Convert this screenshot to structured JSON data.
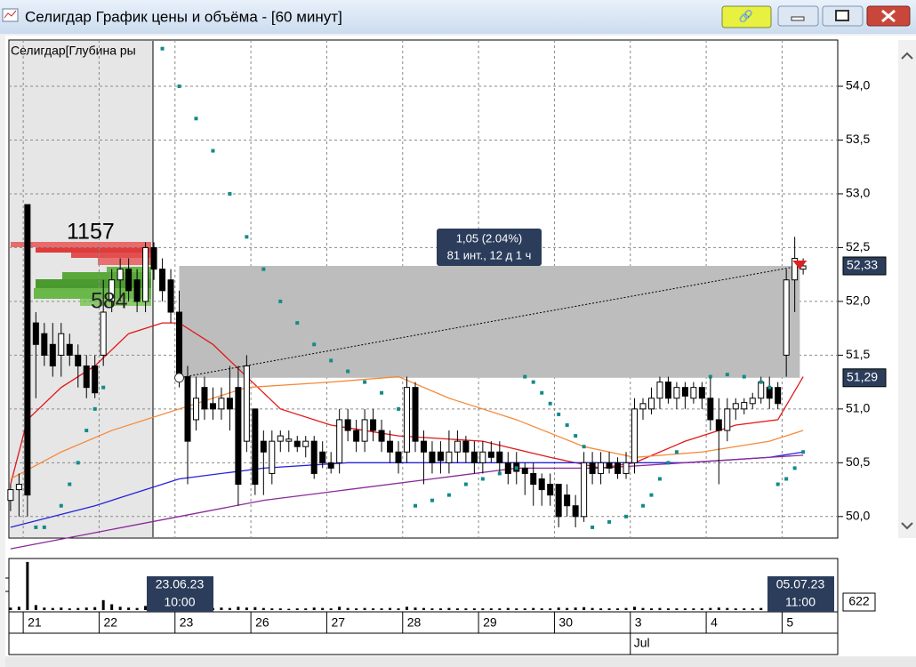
{
  "window": {
    "title": "Селигдар График цены и объёма - [60 минут]"
  },
  "chart_data": {
    "type": "candlestick",
    "profile": {
      "title": "Селигдар[Глубина ры",
      "ask_label": "1157",
      "bid_label": "584"
    },
    "xlim": [
      -0.2,
      98.1
    ],
    "xticks": [
      {
        "value": 2,
        "label": "21"
      },
      {
        "value": 11,
        "label": "22"
      },
      {
        "value": 20,
        "label": "23"
      },
      {
        "value": 29,
        "label": "26"
      },
      {
        "value": 38,
        "label": "27"
      },
      {
        "value": 47,
        "label": "28"
      },
      {
        "value": 56,
        "label": "29"
      },
      {
        "value": 65,
        "label": "30"
      },
      {
        "value": 74,
        "label": "3"
      },
      {
        "value": 83,
        "label": "4"
      },
      {
        "value": 92,
        "label": "5"
      }
    ],
    "month_label": {
      "value": 74,
      "label": "Jul"
    },
    "ylim": [
      49.8,
      54.43
    ],
    "yticks": [
      {
        "value": 50,
        "label": "50,0"
      },
      {
        "value": 50.5,
        "label": "50,5"
      },
      {
        "value": 51,
        "label": "51,0"
      },
      {
        "value": 51.5,
        "label": "51,5"
      },
      {
        "value": 52,
        "label": "52,0"
      },
      {
        "value": 52.5,
        "label": "52,5"
      },
      {
        "value": 53,
        "label": "53,0"
      },
      {
        "value": 53.5,
        "label": "53,5"
      },
      {
        "value": 54,
        "label": "54,0"
      }
    ],
    "grid": true,
    "ohlc": [
      [
        50.15,
        50.3,
        50.05,
        50.25
      ],
      [
        50.25,
        50.4,
        50.0,
        50.3
      ],
      [
        52.9,
        52.9,
        50.0,
        50.2
      ],
      [
        51.8,
        51.9,
        51.1,
        51.6
      ],
      [
        51.7,
        51.8,
        51.4,
        51.5
      ],
      [
        51.6,
        51.8,
        51.3,
        51.4
      ],
      [
        51.5,
        51.8,
        51.3,
        51.7
      ],
      [
        51.6,
        51.7,
        51.4,
        51.5
      ],
      [
        51.5,
        51.6,
        51.2,
        51.4
      ],
      [
        51.4,
        51.5,
        51.1,
        51.2
      ],
      [
        51.4,
        51.5,
        51.1,
        51.15
      ],
      [
        51.5,
        52.2,
        51.4,
        51.9
      ],
      [
        52.0,
        52.3,
        51.9,
        52.2
      ],
      [
        52.2,
        52.4,
        52.0,
        52.3
      ],
      [
        52.3,
        52.4,
        52.0,
        52.1
      ],
      [
        52.2,
        52.3,
        51.9,
        52.0
      ],
      [
        52.0,
        52.55,
        51.9,
        52.5
      ],
      [
        52.5,
        52.55,
        52.2,
        52.3
      ],
      [
        52.3,
        52.4,
        52.0,
        52.1
      ],
      [
        52.2,
        52.3,
        51.8,
        51.9
      ],
      [
        51.9,
        52.1,
        51.2,
        51.3
      ],
      [
        51.3,
        51.4,
        50.3,
        50.7
      ],
      [
        50.9,
        51.3,
        50.8,
        51.1
      ],
      [
        51.2,
        51.3,
        50.9,
        51.0
      ],
      [
        51.05,
        51.2,
        50.9,
        51.0
      ],
      [
        51.0,
        51.2,
        50.9,
        51.1
      ],
      [
        51.1,
        51.4,
        50.8,
        51.0
      ],
      [
        51.2,
        51.4,
        50.1,
        50.3
      ],
      [
        50.7,
        51.5,
        50.6,
        51.4
      ],
      [
        51.0,
        51.0,
        50.2,
        50.3
      ],
      [
        50.7,
        50.8,
        50.2,
        50.6
      ],
      [
        50.4,
        50.8,
        50.3,
        50.7
      ],
      [
        50.7,
        50.8,
        50.6,
        50.75
      ],
      [
        50.7,
        50.8,
        50.6,
        50.72
      ],
      [
        50.7,
        50.75,
        50.6,
        50.65
      ],
      [
        50.65,
        50.75,
        50.55,
        50.7
      ],
      [
        50.7,
        50.75,
        50.35,
        50.4
      ],
      [
        50.6,
        50.7,
        50.45,
        50.5
      ],
      [
        50.5,
        50.6,
        50.4,
        50.45
      ],
      [
        50.5,
        51.0,
        50.4,
        50.9
      ],
      [
        50.9,
        51.0,
        50.7,
        50.8
      ],
      [
        50.8,
        50.9,
        50.6,
        50.7
      ],
      [
        50.7,
        51.0,
        50.6,
        50.9
      ],
      [
        50.9,
        51.0,
        50.7,
        50.8
      ],
      [
        50.8,
        50.9,
        50.6,
        50.7
      ],
      [
        50.7,
        50.8,
        50.5,
        50.6
      ],
      [
        50.6,
        50.7,
        50.4,
        50.5
      ],
      [
        50.6,
        51.3,
        50.5,
        51.2
      ],
      [
        51.2,
        51.25,
        50.6,
        50.7
      ],
      [
        50.7,
        50.8,
        50.3,
        50.6
      ],
      [
        50.6,
        50.7,
        50.4,
        50.5
      ],
      [
        50.6,
        50.7,
        50.4,
        50.52
      ],
      [
        50.5,
        50.8,
        50.4,
        50.6
      ],
      [
        50.6,
        50.8,
        50.5,
        50.7
      ],
      [
        50.7,
        50.75,
        50.5,
        50.6
      ],
      [
        50.6,
        50.7,
        50.4,
        50.5
      ],
      [
        50.5,
        50.7,
        50.4,
        50.6
      ],
      [
        50.6,
        50.7,
        50.5,
        50.55
      ],
      [
        50.6,
        50.7,
        50.4,
        50.5
      ],
      [
        50.5,
        50.6,
        50.3,
        50.4
      ],
      [
        50.5,
        50.6,
        50.3,
        50.42
      ],
      [
        50.45,
        50.5,
        50.2,
        50.4
      ],
      [
        50.4,
        50.5,
        50.1,
        50.3
      ],
      [
        50.35,
        50.4,
        50.1,
        50.25
      ],
      [
        50.3,
        50.4,
        50.1,
        50.2
      ],
      [
        50.3,
        50.3,
        49.9,
        50.0
      ],
      [
        50.2,
        50.3,
        50.0,
        50.1
      ],
      [
        50.1,
        50.2,
        49.9,
        50.0
      ],
      [
        50.0,
        50.6,
        49.95,
        50.5
      ],
      [
        50.5,
        50.6,
        50.3,
        50.4
      ],
      [
        50.4,
        50.6,
        50.3,
        50.5
      ],
      [
        50.5,
        50.6,
        50.4,
        50.45
      ],
      [
        50.5,
        50.55,
        50.35,
        50.4
      ],
      [
        50.4,
        50.6,
        50.35,
        50.5
      ],
      [
        50.5,
        51.1,
        50.4,
        51.0
      ],
      [
        51.0,
        51.1,
        50.9,
        51.05
      ],
      [
        51.0,
        51.2,
        50.95,
        51.1
      ],
      [
        51.1,
        51.3,
        51.0,
        51.25
      ],
      [
        51.25,
        51.3,
        51.05,
        51.1
      ],
      [
        51.1,
        51.25,
        51.0,
        51.2
      ],
      [
        51.2,
        51.25,
        51.0,
        51.12
      ],
      [
        51.1,
        51.25,
        51.05,
        51.2
      ],
      [
        51.2,
        51.25,
        51.0,
        51.1
      ],
      [
        51.1,
        51.3,
        50.8,
        50.9
      ],
      [
        50.9,
        51.1,
        50.3,
        50.8
      ],
      [
        50.8,
        51.1,
        50.7,
        51.0
      ],
      [
        51.0,
        51.1,
        50.9,
        51.05
      ],
      [
        51.0,
        51.1,
        50.95,
        51.06
      ],
      [
        51.05,
        51.15,
        51.0,
        51.1
      ],
      [
        51.1,
        51.3,
        51.05,
        51.25
      ],
      [
        51.2,
        51.3,
        51.0,
        51.1
      ],
      [
        51.2,
        51.25,
        51.0,
        51.05
      ],
      [
        51.5,
        52.3,
        51.3,
        52.2
      ],
      [
        52.2,
        52.6,
        51.9,
        52.4
      ],
      [
        52.3,
        52.4,
        52.25,
        52.33
      ]
    ],
    "lines": [
      {
        "color": "#e01818",
        "x": [
          0,
          2,
          6,
          10,
          14,
          18,
          20,
          24,
          28,
          32,
          38,
          46,
          56,
          64,
          70,
          74,
          80,
          86,
          91,
          94
        ],
        "values": [
          50.3,
          50.9,
          51.2,
          51.4,
          51.7,
          51.8,
          51.8,
          51.6,
          51.3,
          51.0,
          50.85,
          50.75,
          50.7,
          50.55,
          50.45,
          50.5,
          50.7,
          50.85,
          50.9,
          51.3
        ]
      },
      {
        "color": "#f58a3c",
        "x": [
          0,
          6,
          12,
          20,
          28,
          38,
          46,
          52,
          60,
          68,
          74,
          82,
          90,
          94
        ],
        "values": [
          50.35,
          50.6,
          50.8,
          51.0,
          51.2,
          51.25,
          51.3,
          51.1,
          50.9,
          50.65,
          50.55,
          50.6,
          50.7,
          50.8
        ]
      },
      {
        "color": "#2424d8",
        "x": [
          0,
          10,
          20,
          30,
          40,
          50,
          60,
          70,
          80,
          90,
          94
        ],
        "values": [
          49.9,
          50.1,
          50.35,
          50.45,
          50.5,
          50.5,
          50.5,
          50.5,
          50.5,
          50.55,
          50.6
        ]
      },
      {
        "color": "#8a2a9a",
        "x": [
          0,
          10,
          20,
          30,
          40,
          50,
          60,
          70,
          80,
          90,
          94
        ],
        "values": [
          49.7,
          49.85,
          50.0,
          50.15,
          50.25,
          50.35,
          50.45,
          50.45,
          50.5,
          50.55,
          50.57
        ]
      }
    ],
    "sar": {
      "color": "#138a8a",
      "x": [
        3,
        4,
        6,
        7,
        8,
        9,
        10,
        11,
        18,
        20,
        22,
        24,
        26,
        28,
        30,
        32,
        34,
        36,
        38,
        40,
        42,
        44,
        46,
        48,
        50,
        52,
        54,
        56,
        58,
        60,
        61,
        62,
        63,
        64,
        65,
        66,
        67,
        68,
        69,
        71,
        73,
        75,
        76,
        77,
        78,
        79,
        83,
        85,
        87,
        89,
        90,
        91,
        92,
        93,
        94
      ],
      "values": [
        49.9,
        49.9,
        50.1,
        50.3,
        50.5,
        50.8,
        51.0,
        51.2,
        54.35,
        54.0,
        53.7,
        53.4,
        53.0,
        52.6,
        52.3,
        52.0,
        51.8,
        51.6,
        51.45,
        51.35,
        51.25,
        51.15,
        51.0,
        50.1,
        50.15,
        50.2,
        50.3,
        50.35,
        50.4,
        50.45,
        51.3,
        51.25,
        51.15,
        51.05,
        50.95,
        50.85,
        50.75,
        50.65,
        49.9,
        49.95,
        50.0,
        50.1,
        50.2,
        50.35,
        50.5,
        50.6,
        51.3,
        51.32,
        51.3,
        51.25,
        51.2,
        50.3,
        50.35,
        50.45,
        50.6
      ]
    },
    "price_tags": [
      {
        "value": 52.33,
        "label": "52,33"
      },
      {
        "value": 51.29,
        "label": "51,29"
      }
    ],
    "measure": {
      "line1": "1,05 (2.04%)",
      "line2": "81 инт., 12 д 1 ч"
    },
    "cursor_labels": [
      {
        "date": "23.06.23",
        "time": "10:00"
      },
      {
        "date": "05.07.23",
        "time": "11:00"
      }
    ],
    "volume": {
      "ylim": [
        0,
        6000
      ],
      "values": [
        300,
        400,
        5800,
        600,
        300,
        250,
        300,
        200,
        250,
        300,
        350,
        1200,
        700,
        400,
        300,
        250,
        500,
        400,
        300,
        350,
        450,
        300,
        250,
        200,
        250,
        300,
        250,
        400,
        300,
        350,
        250,
        200,
        200,
        150,
        200,
        200,
        300,
        250,
        200,
        400,
        250,
        200,
        250,
        200,
        200,
        250,
        200,
        400,
        300,
        250,
        200,
        200,
        250,
        200,
        200,
        200,
        200,
        200,
        200,
        250,
        200,
        200,
        250,
        200,
        200,
        300,
        250,
        300,
        350,
        250,
        200,
        200,
        200,
        250,
        400,
        250,
        200,
        250,
        200,
        200,
        200,
        200,
        200,
        250,
        300,
        250,
        200,
        200,
        200,
        250,
        200,
        250,
        900,
        700,
        622
      ]
    }
  }
}
